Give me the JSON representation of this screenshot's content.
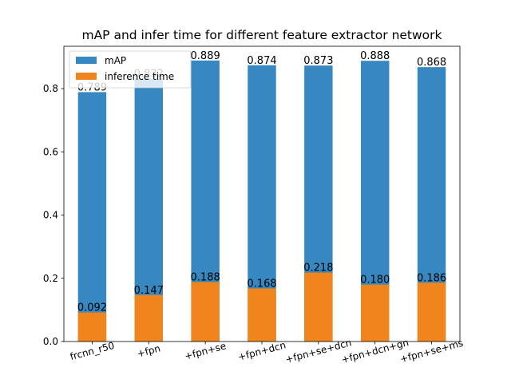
{
  "chart_data": {
    "type": "bar",
    "title": "mAP and infer time for different feature extractor network",
    "xlabel": "",
    "ylabel": "",
    "categories": [
      "frcnn_r50",
      "+fpn",
      "+fpn+se",
      "+fpn+dcn",
      "+fpn+se+dcn",
      "+fpn+dcn+gn",
      "+fpn+se+ms"
    ],
    "series": [
      {
        "name": "mAP",
        "values": [
          0.789,
          0.832,
          0.889,
          0.874,
          0.873,
          0.888,
          0.868
        ],
        "labels": [
          "0.789",
          "0.832",
          "0.889",
          "0.874",
          "0.873",
          "0.888",
          "0.868"
        ],
        "color": "#3787c0"
      },
      {
        "name": "inference time",
        "values": [
          0.092,
          0.147,
          0.188,
          0.168,
          0.218,
          0.18,
          0.186
        ],
        "labels": [
          "0.092",
          "0.147",
          "0.188",
          "0.168",
          "0.218",
          "0.180",
          "0.186"
        ],
        "color": "#f0851e"
      }
    ],
    "ylim": [
      0,
      0.934
    ],
    "yticks": [
      "0.0",
      "0.2",
      "0.4",
      "0.6",
      "0.8"
    ],
    "ytick_values": [
      0.0,
      0.2,
      0.4,
      0.6,
      0.8
    ],
    "grid": false,
    "legend_position": "upper-left",
    "x_tick_rotation_deg": 15
  }
}
